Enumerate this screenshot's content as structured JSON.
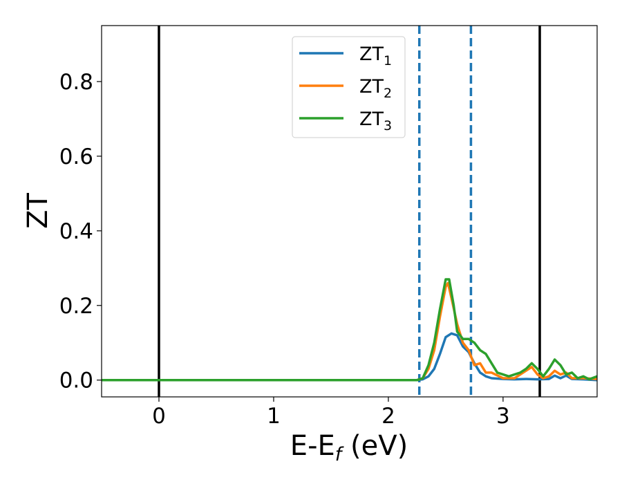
{
  "chart_data": {
    "type": "line",
    "title": "",
    "xlabel_main": "E-E",
    "xlabel_sub": "f",
    "xlabel_unit": " (eV)",
    "ylabel": "ZT",
    "xlim": [
      -0.5,
      3.82
    ],
    "ylim": [
      -0.045,
      0.95
    ],
    "xticks": [
      0,
      1,
      2,
      3
    ],
    "yticks": [
      0.0,
      0.2,
      0.4,
      0.6,
      0.8
    ],
    "ytick_labels": [
      "0.0",
      "0.2",
      "0.4",
      "0.6",
      "0.8"
    ],
    "grid": false,
    "legend_position": "top-center",
    "vlines_solid": [
      0,
      3.32
    ],
    "vlines_dashed": [
      2.27,
      2.72
    ],
    "series": [
      {
        "base": "ZT",
        "sub": "1",
        "color": "#1f77b4",
        "x": [
          -0.5,
          2.25,
          2.3,
          2.35,
          2.4,
          2.45,
          2.5,
          2.55,
          2.6,
          2.65,
          2.7,
          2.75,
          2.8,
          2.85,
          2.9,
          3.0,
          3.1,
          3.2,
          3.3,
          3.4,
          3.45,
          3.5,
          3.55,
          3.6,
          3.7,
          3.82
        ],
        "y": [
          0.0,
          0.0,
          0.002,
          0.01,
          0.03,
          0.07,
          0.115,
          0.125,
          0.12,
          0.09,
          0.075,
          0.045,
          0.02,
          0.01,
          0.005,
          0.003,
          0.002,
          0.003,
          0.002,
          0.003,
          0.012,
          0.005,
          0.012,
          0.003,
          0.002,
          0.0
        ]
      },
      {
        "base": "ZT",
        "sub": "2",
        "color": "#ff7f0e",
        "x": [
          -0.5,
          2.25,
          2.3,
          2.35,
          2.4,
          2.45,
          2.5,
          2.52,
          2.55,
          2.6,
          2.65,
          2.7,
          2.75,
          2.8,
          2.85,
          2.9,
          3.0,
          3.1,
          3.2,
          3.25,
          3.3,
          3.35,
          3.4,
          3.45,
          3.5,
          3.55,
          3.6,
          3.7,
          3.82
        ],
        "y": [
          0.0,
          0.0,
          0.005,
          0.03,
          0.08,
          0.17,
          0.25,
          0.26,
          0.22,
          0.15,
          0.1,
          0.08,
          0.04,
          0.045,
          0.02,
          0.02,
          0.005,
          0.005,
          0.025,
          0.035,
          0.015,
          0.005,
          0.01,
          0.025,
          0.015,
          0.02,
          0.005,
          0.005,
          0.003
        ]
      },
      {
        "base": "ZT",
        "sub": "3",
        "color": "#2ca02c",
        "x": [
          -0.5,
          2.25,
          2.3,
          2.35,
          2.4,
          2.45,
          2.5,
          2.53,
          2.57,
          2.6,
          2.65,
          2.7,
          2.75,
          2.8,
          2.85,
          2.9,
          2.95,
          3.0,
          3.05,
          3.1,
          3.15,
          3.2,
          3.25,
          3.3,
          3.35,
          3.4,
          3.45,
          3.5,
          3.55,
          3.6,
          3.65,
          3.7,
          3.75,
          3.82
        ],
        "y": [
          0.0,
          0.0,
          0.005,
          0.04,
          0.1,
          0.19,
          0.27,
          0.27,
          0.2,
          0.13,
          0.11,
          0.11,
          0.1,
          0.08,
          0.07,
          0.045,
          0.02,
          0.015,
          0.01,
          0.015,
          0.02,
          0.03,
          0.045,
          0.03,
          0.01,
          0.03,
          0.055,
          0.04,
          0.015,
          0.02,
          0.005,
          0.01,
          0.002,
          0.01
        ]
      }
    ]
  }
}
